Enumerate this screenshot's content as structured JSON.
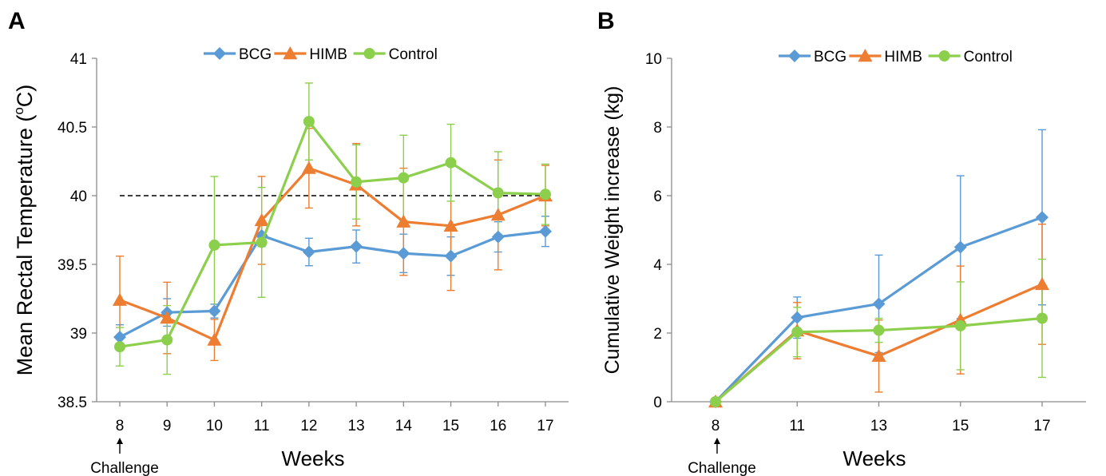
{
  "panels": [
    {
      "letter": "A",
      "annotation": "Challenge"
    },
    {
      "letter": "B",
      "annotation": "Challenge"
    }
  ],
  "chart_data": [
    {
      "type": "line",
      "xlabel": "Weeks",
      "ylabel": "Mean Rectal Temperature (",
      "ylabel_sup": "o",
      "ylabel_end": "C)",
      "x": [
        8,
        9,
        10,
        11,
        12,
        13,
        14,
        15,
        16,
        17
      ],
      "ylim": [
        38.5,
        41
      ],
      "yticks": [
        "38.5",
        "39",
        "39.5",
        "40",
        "40.5",
        "41"
      ],
      "reference_line": 40,
      "legend_position": "top-center",
      "grid": false,
      "series": [
        {
          "name": "BCG",
          "color": "#5b9bd5",
          "marker": "diamond",
          "values": [
            38.97,
            39.15,
            39.16,
            39.71,
            39.59,
            39.63,
            39.58,
            39.56,
            39.7,
            39.74
          ],
          "errors": [
            0.09,
            0.1,
            0.05,
            0.08,
            0.1,
            0.12,
            0.14,
            0.14,
            0.11,
            0.11
          ]
        },
        {
          "name": "HIMB",
          "color": "#ed7d31",
          "marker": "triangle",
          "values": [
            39.24,
            39.11,
            38.95,
            39.82,
            40.2,
            40.08,
            39.81,
            39.78,
            39.86,
            40.0
          ],
          "errors": [
            0.32,
            0.26,
            0.15,
            0.32,
            0.29,
            0.3,
            0.39,
            0.47,
            0.4,
            0.22
          ]
        },
        {
          "name": "Control",
          "color": "#8ccf4d",
          "marker": "circle",
          "values": [
            38.9,
            38.95,
            39.64,
            39.66,
            40.54,
            40.1,
            40.13,
            40.24,
            40.02,
            40.01
          ],
          "errors": [
            0.14,
            0.25,
            0.5,
            0.4,
            0.28,
            0.27,
            0.31,
            0.28,
            0.3,
            0.22
          ]
        }
      ]
    },
    {
      "type": "line",
      "xlabel": "Weeks",
      "ylabel": "Cumulative Weight increase (kg)",
      "x": [
        8,
        11,
        13,
        15,
        17
      ],
      "ylim": [
        0,
        10
      ],
      "yticks": [
        "0",
        "2",
        "4",
        "6",
        "8",
        "10"
      ],
      "legend_position": "top-center",
      "grid": false,
      "series": [
        {
          "name": "BCG",
          "color": "#5b9bd5",
          "marker": "diamond",
          "values": [
            0,
            2.45,
            2.85,
            4.5,
            5.37
          ],
          "errors": [
            0,
            0.6,
            1.42,
            2.08,
            2.55
          ]
        },
        {
          "name": "HIMB",
          "color": "#ed7d31",
          "marker": "triangle",
          "values": [
            0,
            2.07,
            1.33,
            2.38,
            3.42
          ],
          "errors": [
            0,
            0.82,
            1.05,
            1.57,
            1.75
          ]
        },
        {
          "name": "Control",
          "color": "#8ccf4d",
          "marker": "circle",
          "values": [
            0,
            2.03,
            2.08,
            2.21,
            2.43
          ],
          "errors": [
            0,
            0.72,
            0.35,
            1.28,
            1.72
          ]
        }
      ]
    }
  ]
}
